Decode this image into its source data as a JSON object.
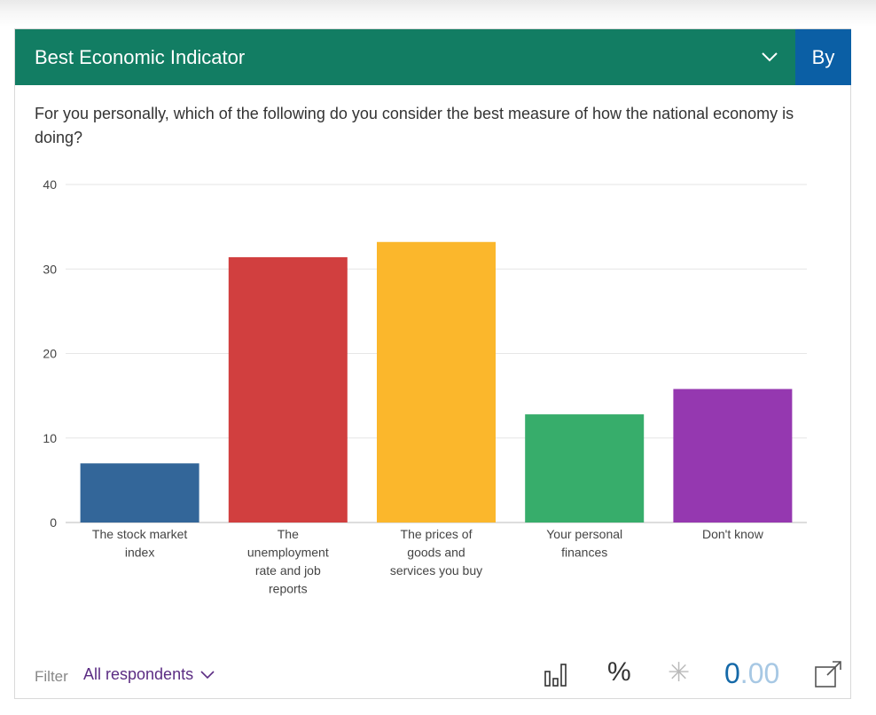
{
  "header": {
    "title": "Best Economic Indicator",
    "by_label": "By"
  },
  "question": "For you personally, which of the following do you consider the best measure of how the national economy is doing?",
  "footer": {
    "filter_label": "Filter",
    "filter_value": "All respondents",
    "percent_symbol": "%",
    "asterisk_symbol": "✳",
    "score_int": "0",
    "score_dec": ".00",
    "icons": [
      "bar-chart-icon",
      "percent-icon",
      "asterisk-icon",
      "external-link-icon",
      "chevron-down-icon"
    ]
  },
  "chart_data": {
    "type": "bar",
    "categories": [
      "The stock market index",
      "The unemployment rate and job reports",
      "The prices of goods and services you buy",
      "Your personal finances",
      "Don't know"
    ],
    "values": [
      7,
      31.4,
      33.2,
      12.8,
      15.8
    ],
    "colors": [
      "#336699",
      "#d13f3f",
      "#fbb72c",
      "#37ad6b",
      "#9538b0"
    ],
    "ylim": [
      0,
      40
    ],
    "yticks": [
      0,
      10,
      20,
      30,
      40
    ],
    "xlabel": "",
    "ylabel": "",
    "grid": true
  }
}
